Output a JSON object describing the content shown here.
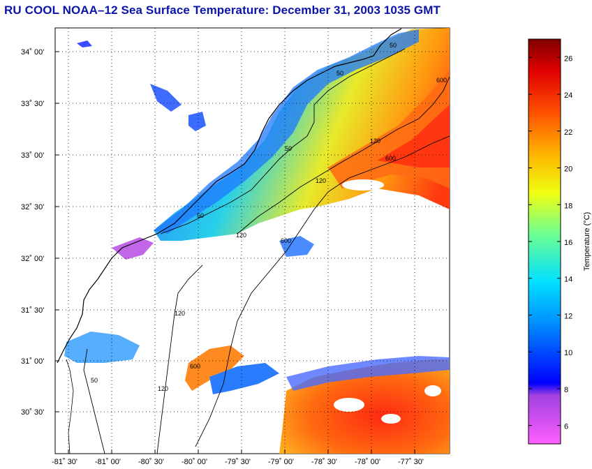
{
  "title": "RU COOL  NOAA–12  Sea Surface Temperature:  December 31, 2003 1035 GMT",
  "map": {
    "lat_labels": [
      "34˚ 00'",
      "33˚ 30'",
      "33˚ 00'",
      "32˚ 30'",
      "32˚ 00'",
      "31˚ 30'",
      "31˚ 00'",
      "30˚ 30'"
    ],
    "lon_labels": [
      "-81˚ 30'",
      "-81˚ 00'",
      "-80˚ 30'",
      "-80˚ 00'",
      "-79˚ 30'",
      "-79˚ 00'",
      "-78˚ 30'",
      "-78˚ 00'",
      "-77˚ 30'"
    ],
    "contour_labels": [
      "50",
      "50",
      "50",
      "50",
      "120",
      "120",
      "120",
      "120",
      "600",
      "600",
      "600",
      "50",
      "120",
      "600"
    ]
  },
  "colorbar": {
    "label": "Temperature (°C)",
    "ticks": [
      "26",
      "24",
      "22",
      "20",
      "18",
      "16",
      "14",
      "12",
      "10",
      "8",
      "6"
    ],
    "range": [
      5,
      27
    ]
  }
}
